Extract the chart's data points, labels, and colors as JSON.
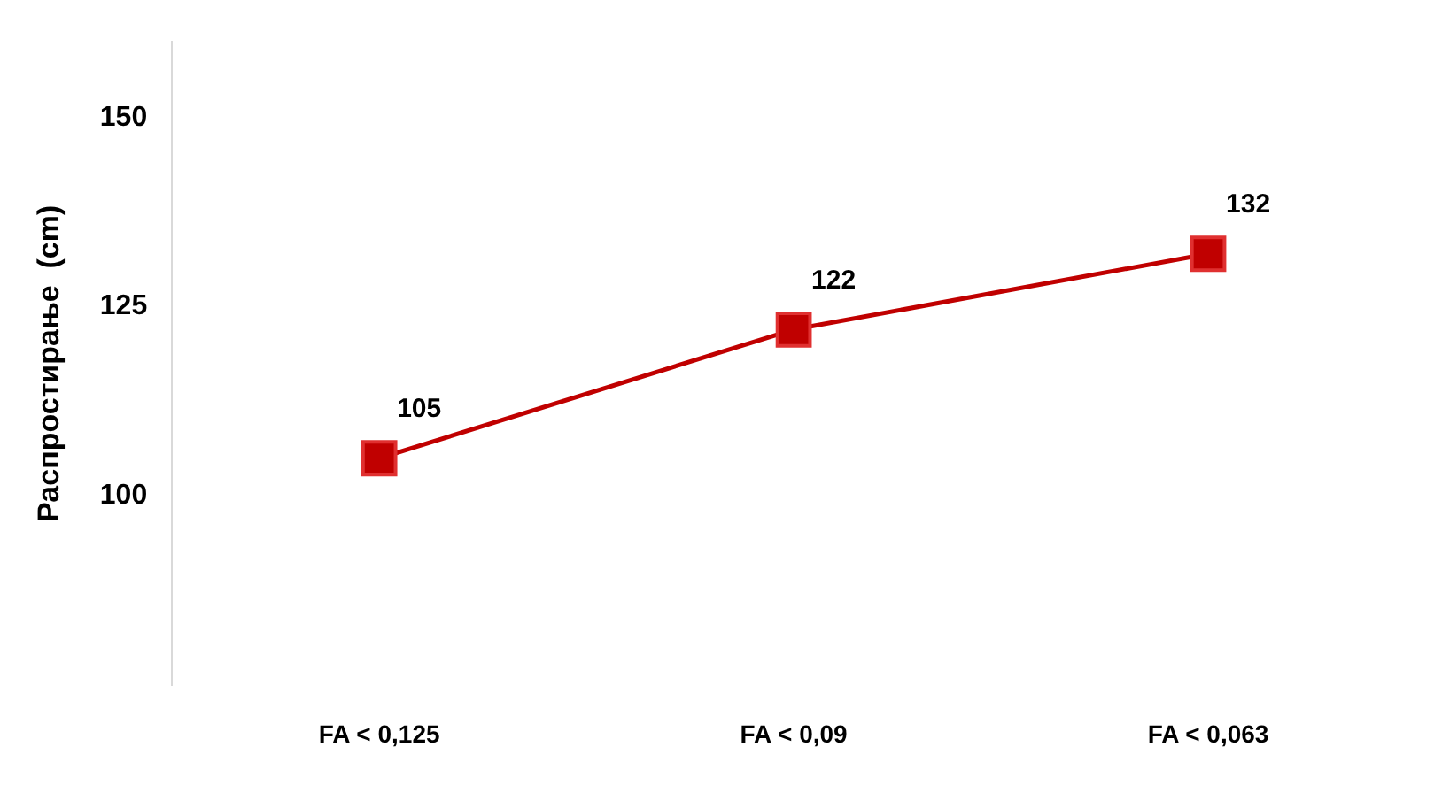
{
  "chart_data": {
    "type": "line",
    "ylabel": "Распростирање  (cm)",
    "categories": [
      "FA < 0,125",
      "FA < 0,09",
      "FA < 0,063"
    ],
    "series": [
      {
        "color": "#c00000",
        "values": [
          105,
          122,
          132
        ]
      }
    ],
    "ylim": [
      75,
      160
    ],
    "yticks": [
      100,
      125,
      150
    ],
    "grid": false,
    "legend": false,
    "marker": "square",
    "line_style": "solid",
    "data_labels": true
  }
}
